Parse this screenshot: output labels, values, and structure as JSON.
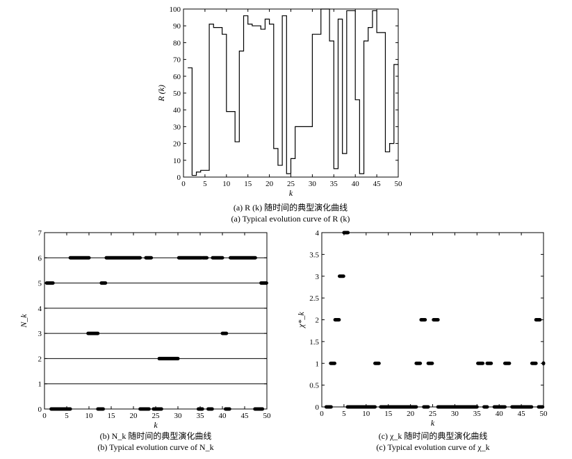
{
  "charts": [
    {
      "type": "line",
      "step": "post",
      "xlabel": "k",
      "ylabel": "R (k)",
      "xlim": [
        0,
        50
      ],
      "ylim": [
        0,
        100
      ],
      "xticks": [
        0,
        5,
        10,
        15,
        20,
        25,
        30,
        35,
        40,
        45,
        50
      ],
      "yticks": [
        0,
        10,
        20,
        30,
        40,
        50,
        60,
        70,
        80,
        90,
        100
      ],
      "x": [
        1,
        2,
        3,
        4,
        5,
        6,
        7,
        8,
        9,
        10,
        11,
        12,
        13,
        14,
        15,
        16,
        17,
        18,
        19,
        20,
        21,
        22,
        23,
        24,
        25,
        26,
        27,
        28,
        29,
        30,
        31,
        32,
        33,
        34,
        35,
        36,
        37,
        38,
        39,
        40,
        41,
        42,
        43,
        44,
        45,
        46,
        47,
        48,
        49,
        50
      ],
      "values": [
        65,
        1,
        3,
        4,
        4,
        91,
        89,
        89,
        85,
        39,
        39,
        21,
        75,
        96,
        91,
        90,
        90,
        88,
        94,
        91,
        17,
        7,
        96,
        2,
        11,
        30,
        30,
        30,
        30,
        85,
        85,
        100,
        100,
        81,
        5,
        94,
        14,
        99,
        99,
        46,
        2,
        81,
        89,
        99,
        86,
        86,
        15,
        20,
        67,
        67
      ],
      "caption_cn": "(a) R (k) 随时间的典型演化曲线",
      "caption_en": "(a) Typical evolution curve of R (k)"
    },
    {
      "type": "scatter",
      "xlabel": "k",
      "ylabel": "N_k",
      "xlim": [
        0,
        50
      ],
      "ylim": [
        0,
        7
      ],
      "xticks": [
        0,
        5,
        10,
        15,
        20,
        25,
        30,
        35,
        40,
        45,
        50
      ],
      "yticks": [
        0,
        1,
        2,
        3,
        4,
        5,
        6,
        7
      ],
      "gridlines_y": [
        0,
        1,
        2,
        3,
        4,
        5,
        6
      ],
      "segments": [
        {
          "y": 0,
          "x": [
            1.5,
            5.8
          ]
        },
        {
          "y": 0,
          "x": [
            12,
            13.2
          ]
        },
        {
          "y": 0,
          "x": [
            21.5,
            23.5
          ]
        },
        {
          "y": 0,
          "x": [
            24.5,
            26.3
          ]
        },
        {
          "y": 0,
          "x": [
            34.6,
            35.5
          ]
        },
        {
          "y": 0,
          "x": [
            36.8,
            37.7
          ]
        },
        {
          "y": 0,
          "x": [
            40.7,
            41.6
          ]
        },
        {
          "y": 0,
          "x": [
            47.3,
            49
          ]
        },
        {
          "y": 1,
          "x": []
        },
        {
          "y": 2,
          "x": [
            25.8,
            30
          ]
        },
        {
          "y": 3,
          "x": [
            9.8,
            12
          ]
        },
        {
          "y": 3,
          "x": [
            40,
            40.9
          ]
        },
        {
          "y": 4,
          "x": []
        },
        {
          "y": 5,
          "x": [
            0.5,
            1.9
          ]
        },
        {
          "y": 5,
          "x": [
            12.8,
            13.7
          ]
        },
        {
          "y": 5,
          "x": [
            48.7,
            49.9
          ]
        },
        {
          "y": 6,
          "x": [
            5.8,
            10
          ]
        },
        {
          "y": 6,
          "x": [
            13.9,
            21.5
          ]
        },
        {
          "y": 6,
          "x": [
            22.8,
            24
          ]
        },
        {
          "y": 6,
          "x": [
            30.2,
            35.3
          ]
        },
        {
          "y": 6,
          "x": [
            35.6,
            36.5
          ]
        },
        {
          "y": 6,
          "x": [
            37.8,
            40
          ]
        },
        {
          "y": 6,
          "x": [
            41.8,
            47.4
          ]
        }
      ],
      "caption_cn": "(b) N_k 随时间的典型演化曲线",
      "caption_en": "(b) Typical evolution curve of N_k"
    },
    {
      "type": "scatter",
      "xlabel": "k",
      "ylabel": "χ*_k",
      "xlim": [
        0,
        50
      ],
      "ylim": [
        0,
        4
      ],
      "xticks": [
        0,
        5,
        10,
        15,
        20,
        25,
        30,
        35,
        40,
        45,
        50
      ],
      "yticks": [
        0,
        0.5,
        1,
        1.5,
        2,
        2.5,
        3,
        3.5,
        4
      ],
      "segments": [
        {
          "y": 0,
          "x": [
            1,
            2.1
          ]
        },
        {
          "y": 0,
          "x": [
            5.8,
            12
          ]
        },
        {
          "y": 0,
          "x": [
            13.3,
            21.3
          ]
        },
        {
          "y": 0,
          "x": [
            23,
            24
          ]
        },
        {
          "y": 0,
          "x": [
            26.2,
            35
          ]
        },
        {
          "y": 0,
          "x": [
            36.6,
            37.3
          ]
        },
        {
          "y": 0,
          "x": [
            38.9,
            41.3
          ]
        },
        {
          "y": 0,
          "x": [
            42.9,
            47.3
          ]
        },
        {
          "y": 0,
          "x": [
            48.9,
            49.8
          ]
        },
        {
          "y": 1,
          "x": [
            2,
            2.9
          ]
        },
        {
          "y": 1,
          "x": [
            12,
            12.9
          ]
        },
        {
          "y": 1,
          "x": [
            21.3,
            22.2
          ]
        },
        {
          "y": 1,
          "x": [
            24,
            24.9
          ]
        },
        {
          "y": 1,
          "x": [
            35.2,
            36.3
          ]
        },
        {
          "y": 1,
          "x": [
            37.3,
            38.2
          ]
        },
        {
          "y": 1,
          "x": [
            41.3,
            42.3
          ]
        },
        {
          "y": 1,
          "x": [
            47.4,
            48.3
          ]
        },
        {
          "y": 1,
          "x": [
            50,
            50
          ]
        },
        {
          "y": 2,
          "x": [
            3,
            3.9
          ]
        },
        {
          "y": 2,
          "x": [
            22.4,
            23.3
          ]
        },
        {
          "y": 2,
          "x": [
            25.2,
            26.2
          ]
        },
        {
          "y": 2,
          "x": [
            48.3,
            49.2
          ]
        },
        {
          "y": 3,
          "x": [
            4,
            4.9
          ]
        },
        {
          "y": 4,
          "x": [
            5,
            5.9
          ]
        }
      ],
      "caption_cn": "(c) χ_k 随时间的典型演化曲线",
      "caption_en": "(c) Typical evolution curve of χ_k"
    }
  ]
}
